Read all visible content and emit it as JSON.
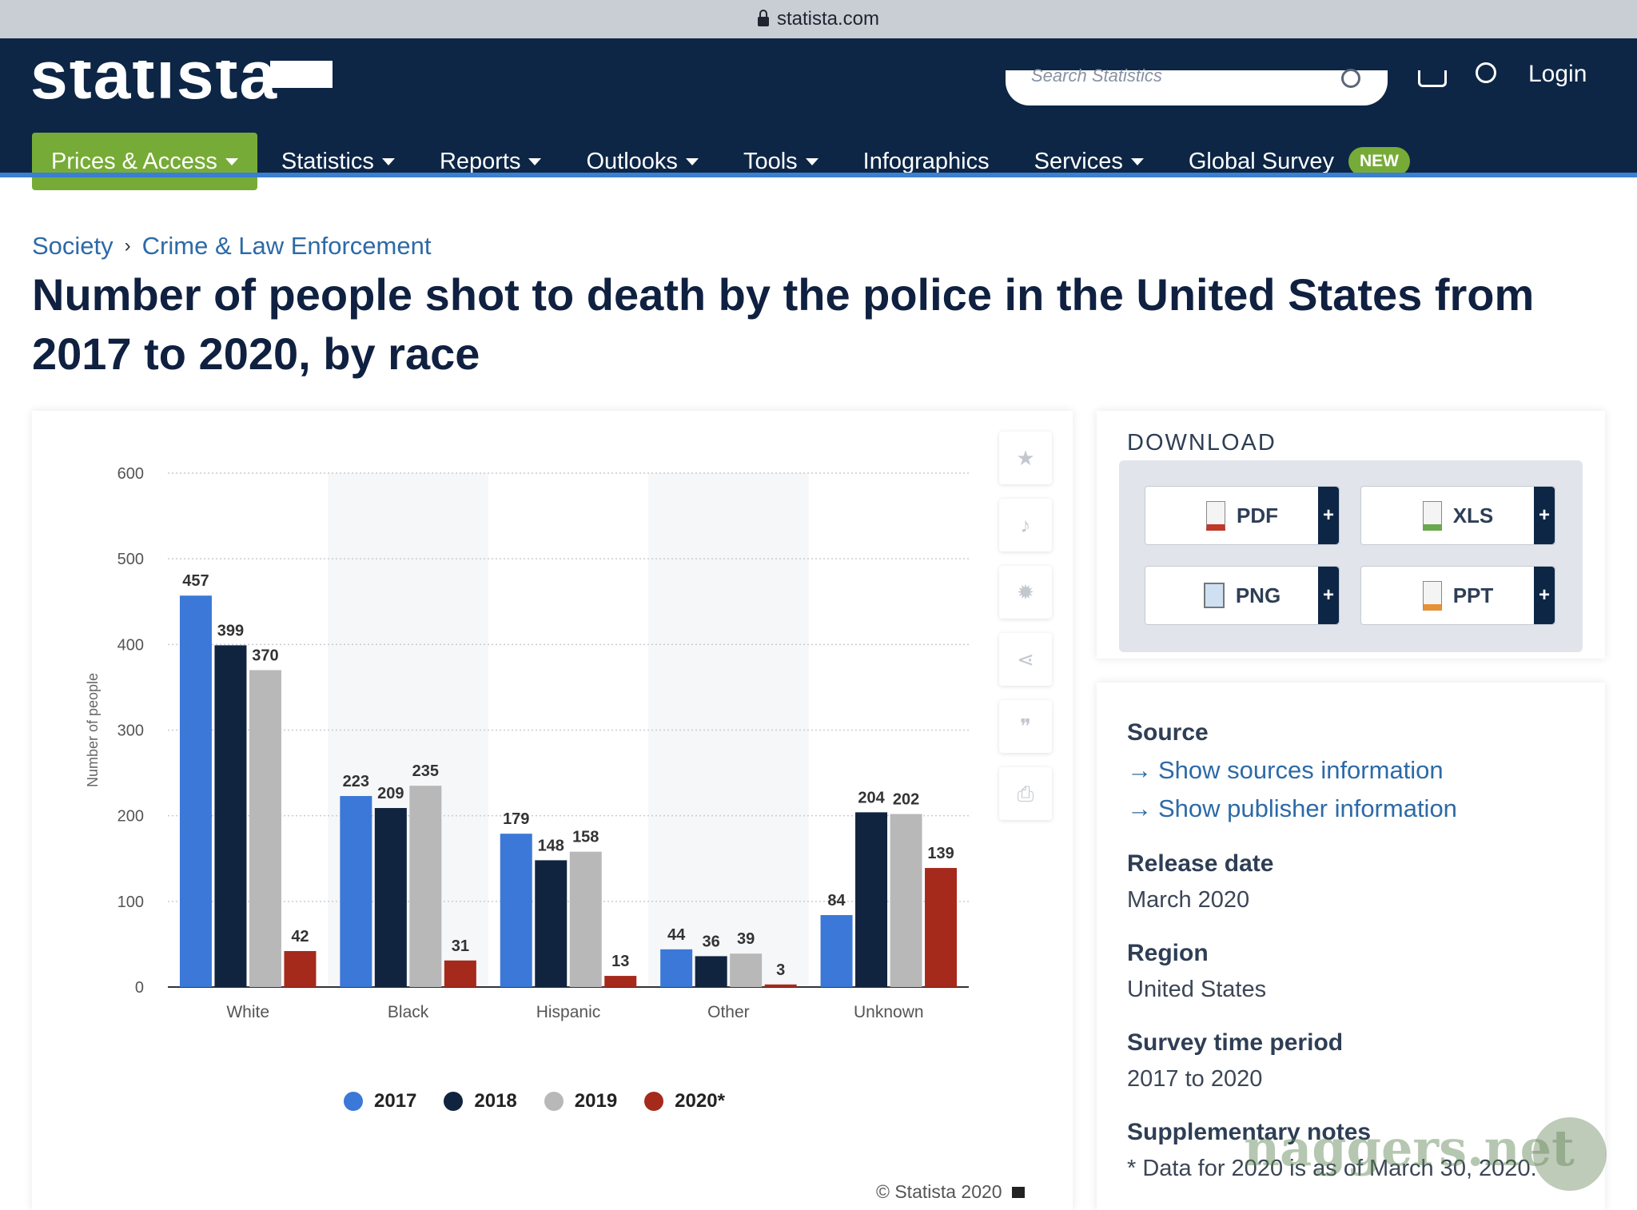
{
  "browser": {
    "url": "statista.com"
  },
  "header": {
    "logo": "statista",
    "search_placeholder": "Search Statistics",
    "login": "Login"
  },
  "nav": {
    "items": [
      {
        "label": "Prices & Access",
        "caret": true,
        "primary": true
      },
      {
        "label": "Statistics",
        "caret": true
      },
      {
        "label": "Reports",
        "caret": true
      },
      {
        "label": "Outlooks",
        "caret": true
      },
      {
        "label": "Tools",
        "caret": true
      },
      {
        "label": "Infographics",
        "caret": false
      },
      {
        "label": "Services",
        "caret": true
      },
      {
        "label": "Global Survey",
        "caret": false
      }
    ],
    "badge": "NEW"
  },
  "breadcrumb": {
    "items": [
      "Society",
      "Crime & Law Enforcement"
    ],
    "separator": "›"
  },
  "page_title": "Number of people shot to death by the police in the United States from 2017 to 2020, by race",
  "chart_data": {
    "type": "bar",
    "categories": [
      "White",
      "Black",
      "Hispanic",
      "Other",
      "Unknown"
    ],
    "series": [
      {
        "name": "2017",
        "color": "#3b78d8",
        "values": [
          457,
          223,
          179,
          44,
          84
        ]
      },
      {
        "name": "2018",
        "color": "#10243f",
        "values": [
          399,
          209,
          148,
          36,
          204
        ]
      },
      {
        "name": "2019",
        "color": "#b8b8b8",
        "values": [
          370,
          235,
          158,
          39,
          202
        ]
      },
      {
        "name": "2020*",
        "color": "#a52a1c",
        "values": [
          42,
          31,
          13,
          3,
          139
        ]
      }
    ],
    "ylabel": "Number of people",
    "ylim": [
      0,
      600
    ],
    "yticks": [
      0,
      100,
      200,
      300,
      400,
      500,
      600
    ],
    "grid": true,
    "legend_position": "bottom"
  },
  "chart_tools": [
    "star-icon",
    "bell-icon",
    "gear-icon",
    "share-icon",
    "quote-icon",
    "print-icon"
  ],
  "copyright": "© Statista 2020",
  "download": {
    "title": "DOWNLOAD",
    "buttons": [
      {
        "label": "PDF",
        "icon": "pdf-file-icon",
        "color": "#c0392b"
      },
      {
        "label": "XLS",
        "icon": "xls-file-icon",
        "color": "#6aa84f"
      },
      {
        "label": "PNG",
        "icon": "png-file-icon",
        "color": "#3d85c6"
      },
      {
        "label": "PPT",
        "icon": "ppt-file-icon",
        "color": "#e69138"
      }
    ],
    "plus": "+"
  },
  "info": {
    "source_label": "Source",
    "source_links": [
      "Show sources information",
      "Show publisher information"
    ],
    "release_label": "Release date",
    "release_value": "March 2020",
    "region_label": "Region",
    "region_value": "United States",
    "period_label": "Survey time period",
    "period_value": "2017 to 2020",
    "notes_label": "Supplementary notes",
    "notes_value": "* Data for 2020 is as of March 30, 2020."
  },
  "watermark": "naggers.net"
}
